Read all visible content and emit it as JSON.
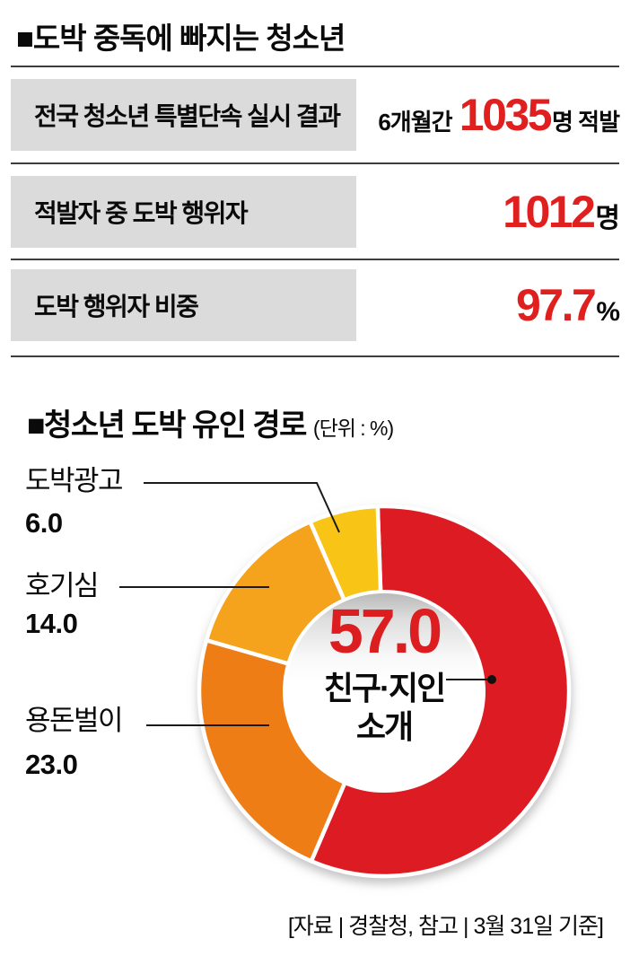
{
  "header": {
    "title": "■도박 중독에 빠지는 청소년",
    "rows": [
      {
        "label": "전국 청소년 특별단속 실시 결과",
        "value_prefix": "6개월간 ",
        "value": "1035",
        "value_suffix": "명 적발"
      },
      {
        "label": "적발자 중 도박 행위자",
        "value_prefix": "",
        "value": "1012",
        "value_suffix": "명"
      },
      {
        "label": "도박 행위자 비중",
        "value_prefix": "",
        "value": "97.7",
        "value_suffix": "%"
      }
    ]
  },
  "chart_section": {
    "title": "■청소년 도박 유인 경로",
    "unit_note": "(단위 : %)"
  },
  "chart_data": {
    "type": "pie",
    "donut": true,
    "title": "청소년 도박 유인 경로",
    "unit": "%",
    "start_angle_deg": -2,
    "legend_position": "left-callouts",
    "segments": [
      {
        "label": "친구·지인 소개",
        "value": 57,
        "display": "57.0",
        "color": "#dc1e21"
      },
      {
        "label": "용돈벌이",
        "value": 23,
        "display": "23.0",
        "color": "#ee7d17"
      },
      {
        "label": "호기심",
        "value": 14,
        "display": "14.0",
        "color": "#f5a21e"
      },
      {
        "label": "도박광고",
        "value": 6,
        "display": "6.0",
        "color": "#f8c414"
      }
    ],
    "center_label": {
      "value": "57.0",
      "line1": "친구·지인",
      "line2": "소개"
    }
  },
  "footer": {
    "source": "[자료 | 경찰청, 참고 | 3월 31일 기준]"
  },
  "colors": {
    "accent_red": "#e01f1f",
    "donut_red": "#dc1e21",
    "donut_orange": "#ee7d17",
    "donut_light_orange": "#f5a21e",
    "donut_yellow": "#f8c414",
    "label_box_gray": "#dbdbdb",
    "rule_gray": "#3d3d3d",
    "text_black": "#0a0a0a"
  }
}
